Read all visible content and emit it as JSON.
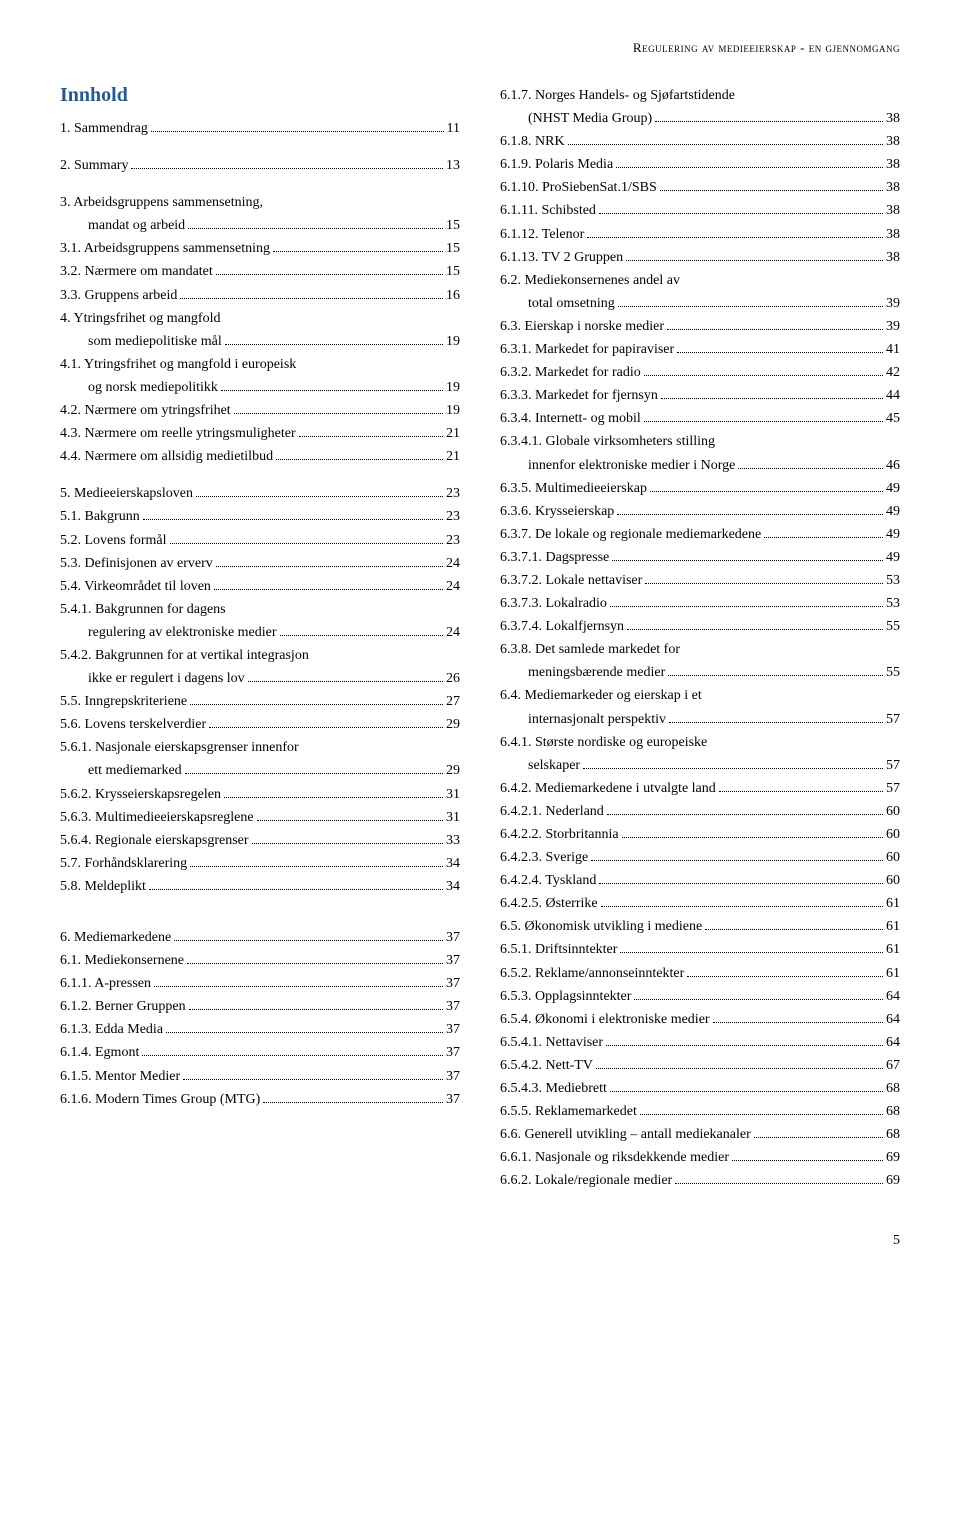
{
  "header": "Regulering av medieeierskap - en gjennomgang",
  "title": "Innhold",
  "pageNumber": "5",
  "left": [
    {
      "label": "1. Sammendrag",
      "page": "11",
      "indent": 0
    },
    {
      "spacer": true
    },
    {
      "label": "2. Summary",
      "page": "13",
      "indent": 0
    },
    {
      "spacer": true
    },
    {
      "label": "3. Arbeidsgruppens sammensetning,",
      "indent": 0,
      "nobreak": true
    },
    {
      "label": "mandat og arbeid",
      "page": "15",
      "indent": 1
    },
    {
      "label": "3.1. Arbeidsgruppens sammensetning",
      "page": "15",
      "indent": 0
    },
    {
      "label": "3.2. Nærmere om mandatet",
      "page": "15",
      "indent": 0
    },
    {
      "label": "3.3. Gruppens arbeid",
      "page": "16",
      "indent": 0
    },
    {
      "label": "4. Ytringsfrihet og mangfold",
      "indent": 0,
      "nobreak": true
    },
    {
      "label": "som mediepolitiske mål",
      "page": "19",
      "indent": 1
    },
    {
      "label": "4.1. Ytringsfrihet og mangfold i europeisk",
      "indent": 0,
      "nobreak": true
    },
    {
      "label": "og norsk mediepolitikk",
      "page": "19",
      "indent": 1
    },
    {
      "label": "4.2. Nærmere om ytringsfrihet",
      "page": "19",
      "indent": 0
    },
    {
      "label": "4.3. Nærmere om reelle ytringsmuligheter",
      "page": "21",
      "indent": 0
    },
    {
      "label": "4.4. Nærmere om allsidig medietilbud",
      "page": "21",
      "indent": 0
    },
    {
      "spacer": true
    },
    {
      "label": "5. Medieeierskapsloven",
      "page": "23",
      "indent": 0
    },
    {
      "label": "5.1. Bakgrunn",
      "page": "23",
      "indent": 0
    },
    {
      "label": "5.2. Lovens formål",
      "page": "23",
      "indent": 0
    },
    {
      "label": "5.3. Definisjonen av erverv",
      "page": "24",
      "indent": 0
    },
    {
      "label": "5.4. Virkeområdet til loven",
      "page": "24",
      "indent": 0
    },
    {
      "label": "5.4.1. Bakgrunnen for dagens",
      "indent": 0,
      "nobreak": true
    },
    {
      "label": "regulering av elektroniske medier",
      "page": "24",
      "indent": 1
    },
    {
      "label": "5.4.2. Bakgrunnen for at vertikal integrasjon",
      "indent": 0,
      "nobreak": true
    },
    {
      "label": "ikke er regulert i dagens lov",
      "page": "26",
      "indent": 1
    },
    {
      "label": "5.5. Inngrepskriteriene",
      "page": "27",
      "indent": 0
    },
    {
      "label": "5.6. Lovens terskelverdier",
      "page": "29",
      "indent": 0
    },
    {
      "label": "5.6.1. Nasjonale eierskapsgrenser innenfor",
      "indent": 0,
      "nobreak": true
    },
    {
      "label": "ett mediemarked",
      "page": "29",
      "indent": 1
    },
    {
      "label": "5.6.2. Krysseierskapsregelen",
      "page": "31",
      "indent": 0
    },
    {
      "label": "5.6.3.  Multimedieeierskapsreglene",
      "page": "31",
      "indent": 0
    },
    {
      "label": "5.6.4. Regionale eierskapsgrenser",
      "page": "33",
      "indent": 0
    },
    {
      "label": "5.7. Forhåndsklarering",
      "page": "34",
      "indent": 0
    },
    {
      "label": "5.8. Meldeplikt",
      "page": "34",
      "indent": 0
    },
    {
      "spacer": true
    },
    {
      "spacer": true
    },
    {
      "label": "6. Mediemarkedene",
      "page": "37",
      "indent": 0
    },
    {
      "label": "6.1. Mediekonsernene",
      "page": "37",
      "indent": 0
    },
    {
      "label": "6.1.1. A-pressen",
      "page": "37",
      "indent": 0
    },
    {
      "label": "6.1.2. Berner Gruppen",
      "page": "37",
      "indent": 0
    },
    {
      "label": "6.1.3. Edda Media",
      "page": "37",
      "indent": 0
    },
    {
      "label": "6.1.4. Egmont",
      "page": "37",
      "indent": 0
    },
    {
      "label": "6.1.5. Mentor Medier",
      "page": "37",
      "indent": 0
    },
    {
      "label": "6.1.6. Modern Times Group (MTG)",
      "page": "37",
      "indent": 0
    }
  ],
  "right": [
    {
      "label": "6.1.7. Norges Handels- og Sjøfartstidende",
      "indent": 0,
      "nobreak": true
    },
    {
      "label": "(NHST Media Group)",
      "page": "38",
      "indent": 1
    },
    {
      "label": "6.1.8. NRK",
      "page": "38",
      "indent": 0
    },
    {
      "label": "6.1.9. Polaris Media",
      "page": "38",
      "indent": 0
    },
    {
      "label": "6.1.10. ProSiebenSat.1/SBS",
      "page": "38",
      "indent": 0
    },
    {
      "label": "6.1.11. Schibsted",
      "page": "38",
      "indent": 0
    },
    {
      "label": "6.1.12. Telenor",
      "page": "38",
      "indent": 0
    },
    {
      "label": "6.1.13. TV 2 Gruppen",
      "page": "38",
      "indent": 0
    },
    {
      "label": "6.2. Mediekonsernenes andel av",
      "indent": 0,
      "nobreak": true
    },
    {
      "label": "total omsetning",
      "page": "39",
      "indent": 1
    },
    {
      "label": "6.3. Eierskap i norske medier",
      "page": "39",
      "indent": 0
    },
    {
      "label": "6.3.1. Markedet for papiraviser",
      "page": "41",
      "indent": 0
    },
    {
      "label": "6.3.2. Markedet for radio",
      "page": "42",
      "indent": 0
    },
    {
      "label": "6.3.3. Markedet for fjernsyn",
      "page": "44",
      "indent": 0
    },
    {
      "label": "6.3.4. Internett- og mobil",
      "page": "45",
      "indent": 0
    },
    {
      "label": "6.3.4.1. Globale virksomheters stilling",
      "indent": 0,
      "nobreak": true
    },
    {
      "label": "innenfor elektroniske medier i Norge",
      "page": "46",
      "indent": 1
    },
    {
      "label": "6.3.5. Multimedieeierskap",
      "page": "49",
      "indent": 0
    },
    {
      "label": "6.3.6. Krysseierskap",
      "page": "49",
      "indent": 0
    },
    {
      "label": "6.3.7. De lokale og regionale mediemarkedene",
      "page": "49",
      "indent": 0
    },
    {
      "label": "6.3.7.1. Dagspresse",
      "page": "49",
      "indent": 0
    },
    {
      "label": "6.3.7.2. Lokale nettaviser",
      "page": "53",
      "indent": 0
    },
    {
      "label": "6.3.7.3. Lokalradio",
      "page": "53",
      "indent": 0
    },
    {
      "label": "6.3.7.4. Lokalfjernsyn",
      "page": "55",
      "indent": 0
    },
    {
      "label": "6.3.8. Det samlede markedet for",
      "indent": 0,
      "nobreak": true
    },
    {
      "label": "meningsbærende medier",
      "page": "55",
      "indent": 1
    },
    {
      "label": "6.4. Mediemarkeder og eierskap i et",
      "indent": 0,
      "nobreak": true
    },
    {
      "label": "internasjonalt perspektiv",
      "page": "57",
      "indent": 1
    },
    {
      "label": "6.4.1. Største nordiske og europeiske",
      "indent": 0,
      "nobreak": true
    },
    {
      "label": "selskaper",
      "page": "57",
      "indent": 1
    },
    {
      "label": "6.4.2. Mediemarkedene i utvalgte land",
      "page": "57",
      "indent": 0
    },
    {
      "label": "6.4.2.1. Nederland",
      "page": "60",
      "indent": 0
    },
    {
      "label": "6.4.2.2. Storbritannia",
      "page": "60",
      "indent": 0
    },
    {
      "label": "6.4.2.3. Sverige",
      "page": "60",
      "indent": 0
    },
    {
      "label": "6.4.2.4. Tyskland",
      "page": "60",
      "indent": 0
    },
    {
      "label": "6.4.2.5. Østerrike",
      "page": "61",
      "indent": 0
    },
    {
      "label": "6.5. Økonomisk utvikling i mediene",
      "page": "61",
      "indent": 0
    },
    {
      "label": "6.5.1. Driftsinntekter",
      "page": "61",
      "indent": 0
    },
    {
      "label": "6.5.2. Reklame/annonseinntekter",
      "page": "61",
      "indent": 0
    },
    {
      "label": "6.5.3. Opplagsinntekter",
      "page": "64",
      "indent": 0
    },
    {
      "label": "6.5.4. Økonomi i elektroniske medier",
      "page": "64",
      "indent": 0
    },
    {
      "label": "6.5.4.1. Nettaviser",
      "page": "64",
      "indent": 0
    },
    {
      "label": "6.5.4.2. Nett-TV",
      "page": "67",
      "indent": 0
    },
    {
      "label": "6.5.4.3. Mediebrett",
      "page": "68",
      "indent": 0
    },
    {
      "label": "6.5.5. Reklamemarkedet",
      "page": "68",
      "indent": 0
    },
    {
      "label": "6.6. Generell utvikling – antall mediekanaler",
      "page": "68",
      "indent": 0
    },
    {
      "label": "6.6.1. Nasjonale og riksdekkende medier",
      "page": "69",
      "indent": 0
    },
    {
      "label": "6.6.2. Lokale/regionale medier",
      "page": "69",
      "indent": 0
    }
  ]
}
